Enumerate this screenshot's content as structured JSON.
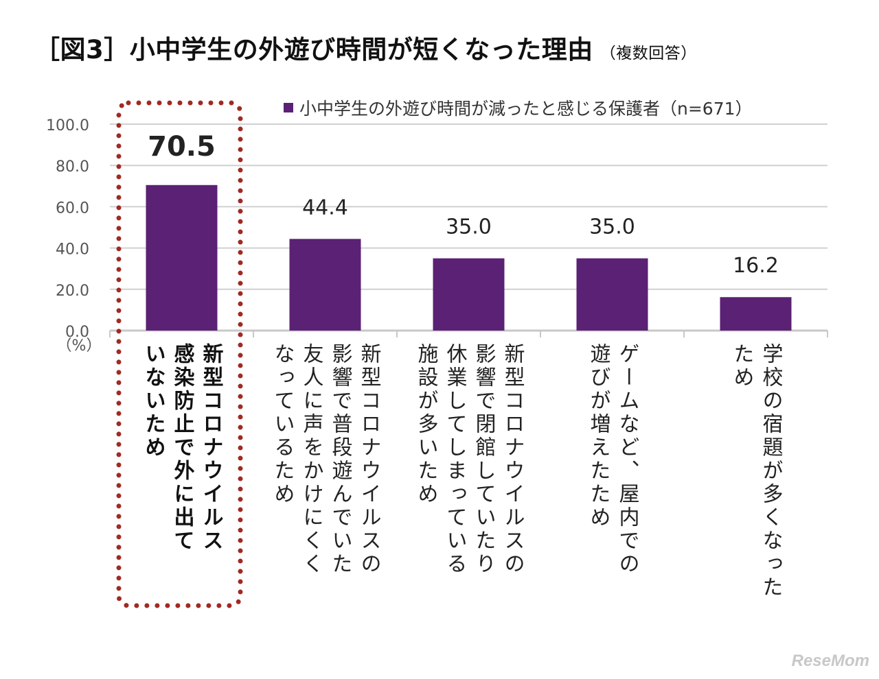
{
  "title": {
    "label": "［図3］",
    "main": "小中学生の外遊び時間が短くなった理由",
    "note": "（複数回答）"
  },
  "watermark": "ReseMom",
  "chart_data": {
    "type": "bar",
    "categories": [
      "新型コロナウイルス\n感染防止で外に出て\nいないため",
      "新型コロナウイルスの\n影響で普段遊んでいた\n友人に声をかけにくく\nなっているため",
      "新型コロナウイルスの\n影響で閉館していたり\n休業してしまっている\n施設が多いため",
      "ゲームなど、屋内での\n遊びが増えたため",
      "学校の宿題が多くなった\nため"
    ],
    "series": [
      {
        "name": "小中学生の外遊び時間が減ったと感じる保護者（n=671）",
        "values": [
          70.5,
          44.4,
          35.0,
          35.0,
          16.2
        ]
      }
    ],
    "value_labels": [
      "70.5",
      "44.4",
      "35.0",
      "35.0",
      "16.2"
    ],
    "yticks": [
      "0.0",
      "20.0",
      "40.0",
      "60.0",
      "80.0",
      "100.0"
    ],
    "yunit": "（%）",
    "ylim": [
      0,
      100
    ],
    "grid": true,
    "legend_position": "top",
    "highlight_index": 0,
    "colors": {
      "bar": "#5b2174",
      "grid": "#d0d0d0",
      "highlight_border": "#a02a22"
    }
  }
}
